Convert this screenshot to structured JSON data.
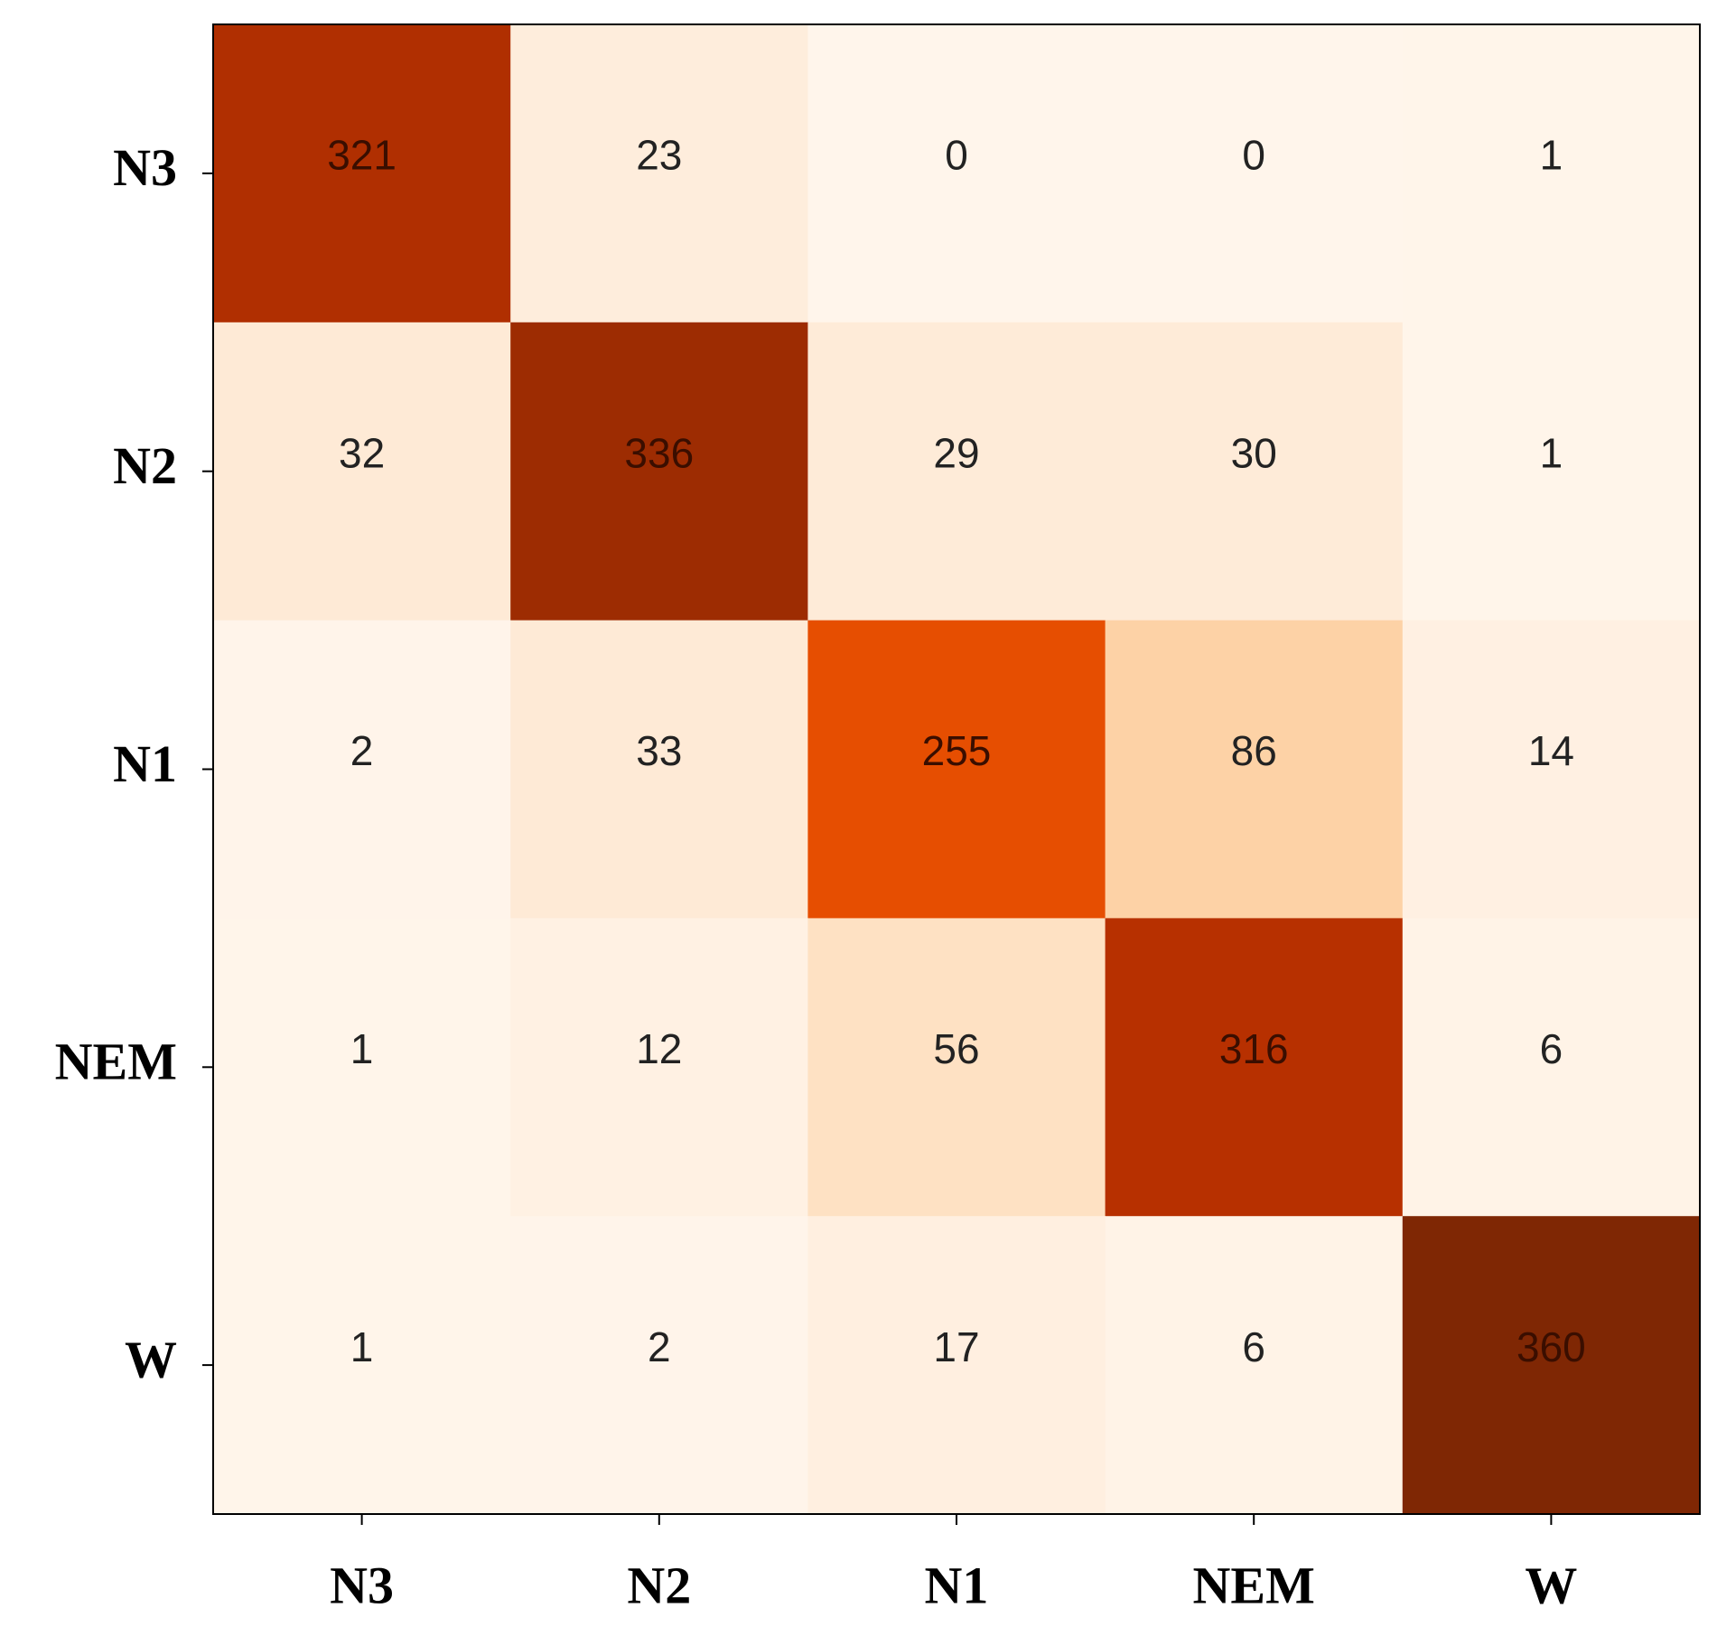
{
  "chart_data": {
    "type": "heatmap",
    "x_categories": [
      "N3",
      "N2",
      "N1",
      "NEM",
      "W"
    ],
    "y_categories": [
      "N3",
      "N2",
      "N1",
      "NEM",
      "W"
    ],
    "z": [
      [
        321,
        23,
        0,
        0,
        1
      ],
      [
        32,
        336,
        29,
        30,
        1
      ],
      [
        2,
        33,
        255,
        86,
        14
      ],
      [
        1,
        12,
        56,
        316,
        6
      ],
      [
        1,
        2,
        17,
        6,
        360
      ]
    ],
    "colors": [
      "#fff5eb",
      "#fee6ce",
      "#fdd0a2",
      "#fdae6b",
      "#fd8d3c",
      "#ff5a00",
      "#d94801",
      "#b83000",
      "#7f2704"
    ]
  }
}
